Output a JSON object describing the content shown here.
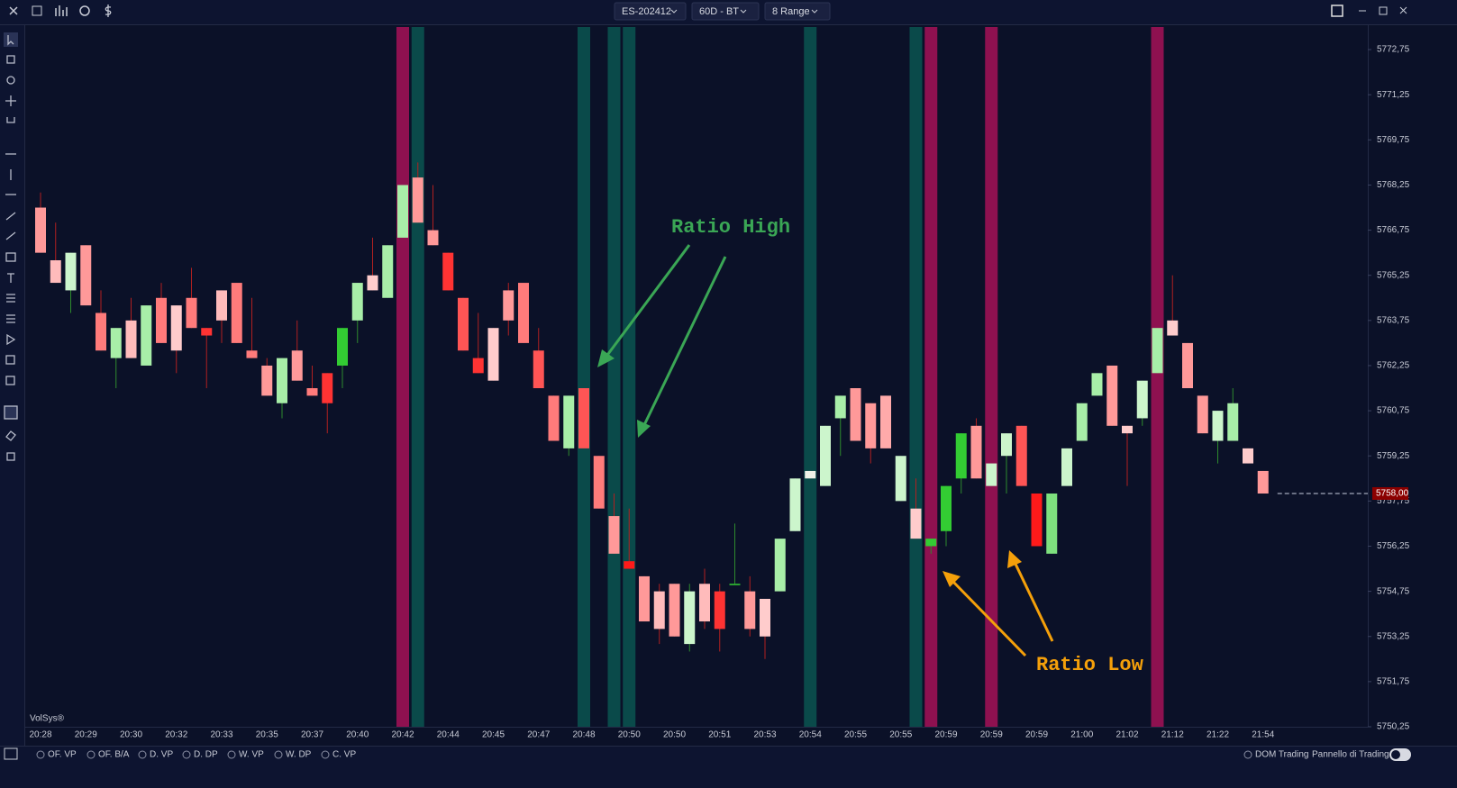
{
  "toolbar": {
    "symbol": "ES-202412",
    "timeframe": "60D - BT",
    "bar_type": "8 Range"
  },
  "chart_data": {
    "type": "candlestick",
    "categories": [
      "20:28",
      null,
      null,
      "20:29",
      null,
      null,
      "20:30",
      null,
      null,
      "20:32",
      null,
      null,
      "20:33",
      null,
      null,
      "20:35",
      null,
      null,
      "20:37",
      null,
      null,
      "20:40",
      null,
      null,
      "20:42",
      null,
      null,
      "20:44",
      null,
      null,
      "20:45",
      null,
      null,
      "20:47",
      null,
      null,
      "20:48",
      null,
      null,
      "20:50",
      null,
      null,
      "20:50",
      null,
      null,
      "20:51",
      null,
      null,
      "20:53",
      null,
      null,
      "20:54",
      null,
      null,
      "20:55",
      null,
      null,
      "20:55",
      null,
      null,
      "20:59",
      null,
      null,
      "20:59",
      null,
      null,
      "20:59",
      null,
      null,
      "21:00",
      null,
      null,
      "21:02",
      null,
      null,
      "21:12",
      null,
      null,
      "21:22",
      null,
      null,
      "21:54"
    ],
    "open": [
      5767.5,
      5765.75,
      5764.75,
      5766.25,
      5764.0,
      5762.5,
      5763.75,
      5762.25,
      5764.5,
      5764.25,
      5764.5,
      5763.5,
      5764.75,
      5765.0,
      5762.75,
      5762.25,
      5761.0,
      5762.75,
      5761.5,
      5762.0,
      5762.25,
      5763.75,
      5765.25,
      5764.5,
      5766.5,
      5768.5,
      5766.75,
      5766.0,
      5764.5,
      5762.5,
      5763.5,
      5764.75,
      5765.0,
      5762.75,
      5761.25,
      5759.5,
      5761.5,
      5759.25,
      5757.25,
      5755.75,
      5755.25,
      5754.75,
      5755.0,
      5753.0,
      5755.0,
      5754.75,
      5755.0,
      5754.75,
      5754.5,
      5754.75,
      5756.75,
      5758.5,
      5758.25,
      5760.5,
      5761.5,
      5761.0,
      5761.25,
      5757.75,
      5757.5,
      5756.25,
      5756.75,
      5758.5,
      5760.25,
      5758.25,
      5759.25,
      5760.25,
      5758.0,
      5756.0,
      5758.25,
      5759.75,
      5761.25,
      5762.25,
      5760.25,
      5760.5,
      5762.0,
      5763.75,
      5763.0,
      5761.25,
      5759.75,
      5759.75,
      5759.5,
      5758.75
    ],
    "high": [
      5768.0,
      5767.0,
      5766.0,
      5766.25,
      5764.75,
      5763.5,
      5764.5,
      5764.25,
      5765.0,
      5764.25,
      5765.5,
      5763.5,
      5764.75,
      5765.0,
      5764.5,
      5762.5,
      5762.5,
      5763.75,
      5762.25,
      5762.0,
      5763.5,
      5765.0,
      5766.5,
      5766.25,
      5768.25,
      5769.0,
      5768.25,
      5766.0,
      5764.5,
      5764.0,
      5763.5,
      5765.0,
      5765.0,
      5763.5,
      5761.25,
      5761.25,
      5761.5,
      5759.25,
      5758.0,
      5757.5,
      5755.25,
      5755.0,
      5755.0,
      5755.0,
      5755.5,
      5755.0,
      5757.0,
      5755.25,
      5754.5,
      5756.5,
      5758.5,
      5758.75,
      5760.25,
      5761.25,
      5761.5,
      5761.0,
      5761.25,
      5759.25,
      5758.5,
      5756.5,
      5758.25,
      5760.0,
      5760.5,
      5759.0,
      5760.0,
      5760.25,
      5758.0,
      5758.0,
      5759.5,
      5761.0,
      5762.0,
      5762.25,
      5760.25,
      5761.75,
      5763.5,
      5765.25,
      5763.0,
      5761.25,
      5760.75,
      5761.5,
      5759.5,
      5758.75
    ],
    "low": [
      5766.0,
      5765.0,
      5764.0,
      5764.25,
      5762.75,
      5761.5,
      5762.5,
      5762.25,
      5763.0,
      5762.0,
      5763.5,
      5761.5,
      5763.0,
      5763.0,
      5762.5,
      5761.25,
      5760.5,
      5761.75,
      5761.25,
      5760.0,
      5761.5,
      5763.0,
      5764.75,
      5764.5,
      5766.5,
      5767.0,
      5766.25,
      5764.75,
      5762.75,
      5762.0,
      5761.75,
      5763.25,
      5763.0,
      5761.5,
      5759.75,
      5759.25,
      5759.5,
      5757.5,
      5756.0,
      5755.5,
      5753.75,
      5753.0,
      5753.25,
      5752.75,
      5753.5,
      5752.75,
      5755.0,
      5753.25,
      5752.5,
      5754.75,
      5756.75,
      5758.5,
      5758.25,
      5759.25,
      5759.75,
      5759.0,
      5759.5,
      5757.75,
      5756.5,
      5756.0,
      5756.25,
      5758.0,
      5758.5,
      5758.25,
      5758.0,
      5758.25,
      5756.25,
      5756.0,
      5758.25,
      5759.75,
      5761.25,
      5760.25,
      5758.25,
      5760.25,
      5762.0,
      5763.25,
      5761.5,
      5760.0,
      5759.0,
      5759.75,
      5759.0,
      5758.0
    ],
    "close": [
      5766.0,
      5765.0,
      5766.0,
      5764.25,
      5762.75,
      5763.5,
      5762.5,
      5764.25,
      5763.0,
      5762.75,
      5763.5,
      5763.25,
      5763.75,
      5763.0,
      5762.5,
      5761.25,
      5762.5,
      5761.75,
      5761.25,
      5761.0,
      5763.5,
      5765.0,
      5764.75,
      5766.25,
      5768.25,
      5767.0,
      5766.25,
      5764.75,
      5762.75,
      5762.0,
      5761.75,
      5763.75,
      5763.0,
      5761.5,
      5759.75,
      5761.25,
      5759.5,
      5757.5,
      5756.0,
      5755.5,
      5753.75,
      5753.5,
      5753.25,
      5754.75,
      5753.75,
      5753.5,
      5755.0,
      5753.5,
      5753.25,
      5756.5,
      5758.5,
      5758.75,
      5760.25,
      5761.25,
      5759.75,
      5759.5,
      5759.5,
      5759.25,
      5756.5,
      5756.5,
      5758.25,
      5760.0,
      5758.5,
      5759.0,
      5760.0,
      5758.25,
      5756.25,
      5758.0,
      5759.5,
      5761.0,
      5762.0,
      5760.25,
      5760.0,
      5761.75,
      5763.5,
      5763.25,
      5761.5,
      5760.0,
      5760.75,
      5761.0,
      5759.0,
      5758.0
    ],
    "colors": [
      "#ff9999",
      "#ffbbbb",
      "#ccf5cc",
      "#ff9999",
      "#ff7b7b",
      "#a8eea8",
      "#ffbbbb",
      "#a8eea8",
      "#ff7b7b",
      "#ffcccc",
      "#ff7b7b",
      "#ff3333",
      "#ffbbbb",
      "#ff7b7b",
      "#ff7b7b",
      "#ff9999",
      "#a8eea8",
      "#ff9999",
      "#ff7b7b",
      "#ff3333",
      "#33cc33",
      "#a8eea8",
      "#ffcccc",
      "#a8eea8",
      "#a8eea8",
      "#ff9999",
      "#ff9999",
      "#ff3333",
      "#ff5555",
      "#ff3333",
      "#ffcccc",
      "#ff9999",
      "#ff7b7b",
      "#ff5555",
      "#ff7b7b",
      "#a8eea8",
      "#ff5555",
      "#ff7b7b",
      "#ff9999",
      "#ff1a1a",
      "#ff9999",
      "#ffbbbb",
      "#ff9999",
      "#ccf5cc",
      "#ffbbbb",
      "#ff3333",
      "#33cc33",
      "#ff9999",
      "#ffcccc",
      "#a8eea8",
      "#ccf5cc",
      "#f0f0e8",
      "#ccf5cc",
      "#a8eea8",
      "#ff9999",
      "#ff9999",
      "#ffaaaa",
      "#ccf5cc",
      "#ffcccc",
      "#33cc33",
      "#33cc33",
      "#33cc33",
      "#ff9999",
      "#ccf5cc",
      "#ccf5cc",
      "#ff5555",
      "#ff1a1a",
      "#7ee07e",
      "#ccf5cc",
      "#a8eea8",
      "#a8eea8",
      "#ff9999",
      "#ffcccc",
      "#ccf5cc",
      "#a8eea8",
      "#ffcccc",
      "#ff9999",
      "#ff9999",
      "#ccf5cc",
      "#a8eea8",
      "#ffcccc",
      "#ff9999"
    ],
    "wick_up_color": "#2e8b2e",
    "wick_down_color": "#b02020",
    "ylim": [
      5750.25,
      5773.5
    ],
    "yticks": [
      {
        "value": 5772.75,
        "label": "5772,75"
      },
      {
        "value": 5771.25,
        "label": "5771,25"
      },
      {
        "value": 5769.75,
        "label": "5769,75"
      },
      {
        "value": 5768.25,
        "label": "5768,25"
      },
      {
        "value": 5766.75,
        "label": "5766,75"
      },
      {
        "value": 5765.25,
        "label": "5765,25"
      },
      {
        "value": 5763.75,
        "label": "5763,75"
      },
      {
        "value": 5762.25,
        "label": "5762,25"
      },
      {
        "value": 5760.75,
        "label": "5760,75"
      },
      {
        "value": 5759.25,
        "label": "5759,25"
      },
      {
        "value": 5757.75,
        "label": "5757,75"
      },
      {
        "value": 5756.25,
        "label": "5756,25"
      },
      {
        "value": 5754.75,
        "label": "5754,75"
      },
      {
        "value": 5753.25,
        "label": "5753,25"
      },
      {
        "value": 5751.75,
        "label": "5751,75"
      },
      {
        "value": 5750.25,
        "label": "5750,25"
      }
    ],
    "last_price": {
      "value": 5758.0,
      "label": "5758,00"
    },
    "ratio_high": [
      25,
      36,
      38,
      39,
      51,
      58
    ],
    "ratio_high_color": "#0a4a4a",
    "ratio_low": [
      24,
      59,
      63,
      74
    ],
    "ratio_low_color": "#8e1150",
    "annotations": [
      {
        "text": "Ratio High",
        "color": "#3aa655"
      },
      {
        "text": "Ratio Low",
        "color": "#f5a00a"
      }
    ],
    "watermark": "VolSys®"
  },
  "bottom_bar": {
    "studies": [
      "OF. VP",
      "OF. B/A",
      "D. VP",
      "D. DP",
      "W. VP",
      "W. DP",
      "C. VP"
    ],
    "dom": "DOM Trading",
    "panel": "Pannello di Trading"
  }
}
